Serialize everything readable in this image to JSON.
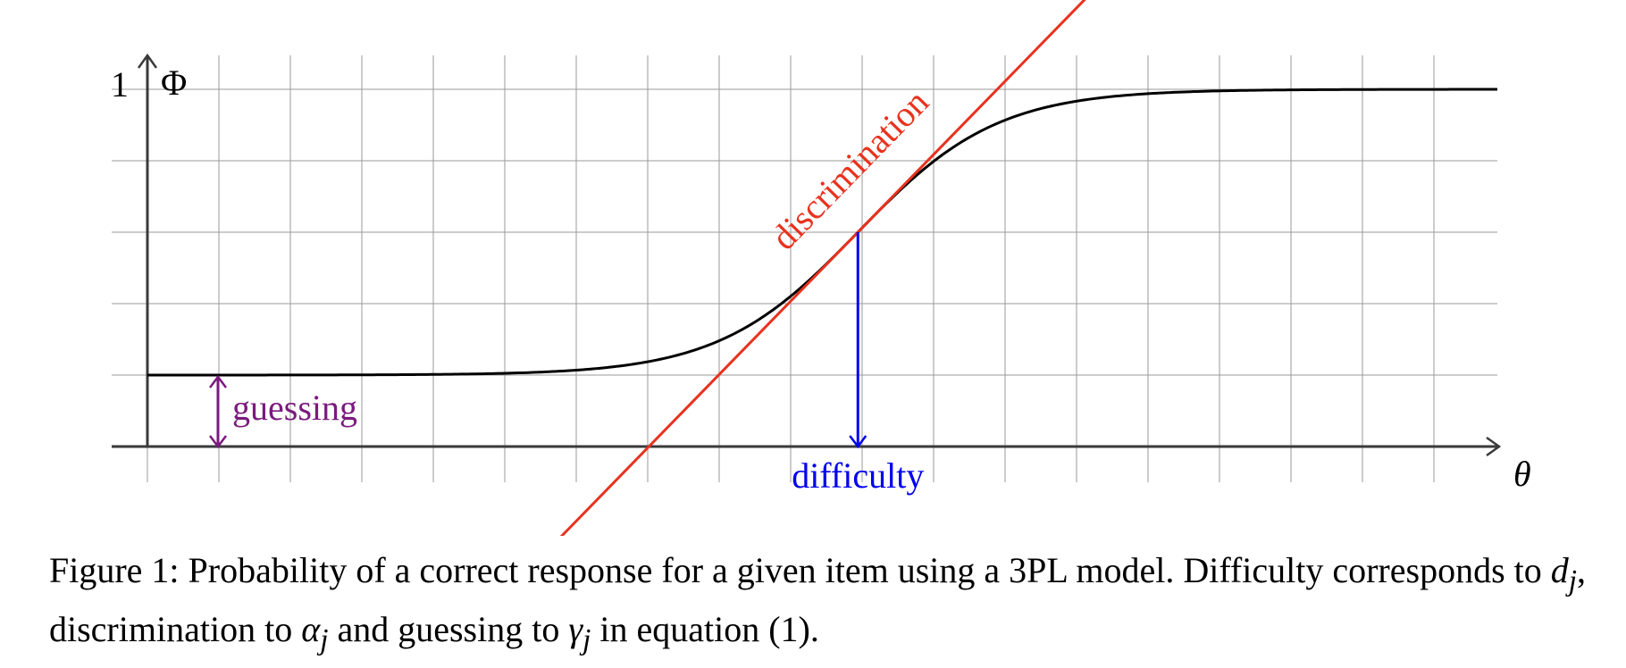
{
  "figure": {
    "y_axis_label": "Φ",
    "y_tick_label": "1",
    "x_axis_label": "θ",
    "annotations": {
      "guessing": "guessing",
      "difficulty": "difficulty",
      "discrimination": "discrimination"
    },
    "colors": {
      "curve": "#000000",
      "guessing": "#7a1a7e",
      "difficulty": "#0000ee",
      "discrimination": "#e8321e",
      "grid": "#9a9a9a",
      "axes": "#3a3a3a"
    },
    "model": {
      "guessing": 0.2,
      "difficulty": 10,
      "discrimination": 0.6,
      "x_range": [
        0,
        19
      ],
      "y_range": [
        0,
        1
      ]
    }
  },
  "caption": {
    "label": "Figure 1:",
    "text_1": "Probability of a correct response for a given item using a 3PL model. Difficulty corresponds to",
    "d": "d",
    "j1": "j",
    "text_2": ", discrimination to",
    "alpha": "α",
    "j2": "j",
    "text_3": "and guessing to",
    "gamma": "γ",
    "j3": "j",
    "text_4": "in equation (1)."
  }
}
